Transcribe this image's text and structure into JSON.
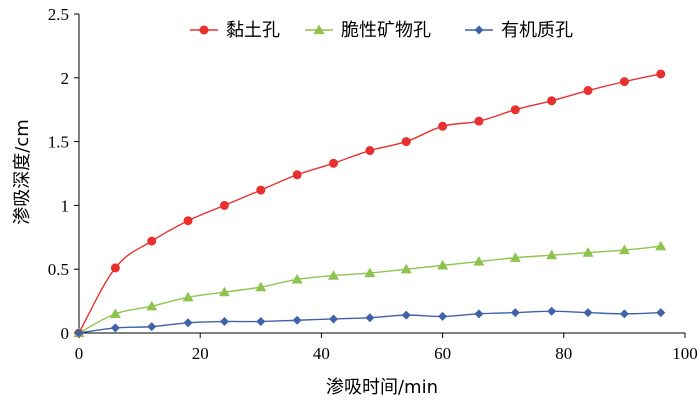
{
  "chart_data": {
    "type": "line",
    "xlabel": "渗吸时间/min",
    "ylabel": "渗吸深度/cm",
    "xlim": [
      0,
      100
    ],
    "ylim": [
      0,
      2.5
    ],
    "xticks": [
      "0",
      "20",
      "40",
      "60",
      "80",
      "100"
    ],
    "yticks": [
      "0",
      "0.5",
      "1",
      "1.5",
      "2",
      "2.5"
    ],
    "x": [
      0,
      6,
      12,
      18,
      24,
      30,
      36,
      42,
      48,
      54,
      60,
      66,
      72,
      78,
      84,
      90,
      96
    ],
    "series": [
      {
        "name": "黏土孔",
        "color": "#e8312f",
        "marker": "circle",
        "values": [
          0,
          0.51,
          0.72,
          0.88,
          1.0,
          1.12,
          1.24,
          1.33,
          1.43,
          1.5,
          1.62,
          1.66,
          1.75,
          1.82,
          1.9,
          1.97,
          2.03
        ]
      },
      {
        "name": "脆性矿物孔",
        "color": "#8fc34f",
        "marker": "triangle",
        "values": [
          0,
          0.15,
          0.21,
          0.28,
          0.32,
          0.36,
          0.42,
          0.45,
          0.47,
          0.5,
          0.53,
          0.56,
          0.59,
          0.61,
          0.63,
          0.65,
          0.68
        ]
      },
      {
        "name": "有机质孔",
        "color": "#3f62a8",
        "marker": "diamond",
        "values": [
          0,
          0.04,
          0.05,
          0.08,
          0.09,
          0.09,
          0.1,
          0.11,
          0.12,
          0.14,
          0.13,
          0.15,
          0.16,
          0.17,
          0.16,
          0.15,
          0.16
        ]
      }
    ],
    "grid": false,
    "legend": "top-right"
  }
}
